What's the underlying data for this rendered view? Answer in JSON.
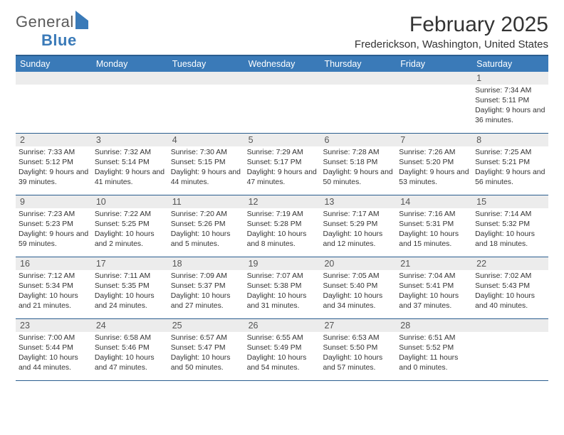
{
  "logo": {
    "word1": "General",
    "word2": "Blue"
  },
  "title": "February 2025",
  "location": "Frederickson, Washington, United States",
  "colors": {
    "header_bg": "#3a7ab8",
    "border": "#2a5d8f",
    "daynum_bg": "#ececec"
  },
  "daysOfWeek": [
    "Sunday",
    "Monday",
    "Tuesday",
    "Wednesday",
    "Thursday",
    "Friday",
    "Saturday"
  ],
  "weeks": [
    [
      null,
      null,
      null,
      null,
      null,
      null,
      {
        "n": "1",
        "sr": "Sunrise: 7:34 AM",
        "ss": "Sunset: 5:11 PM",
        "dl": "Daylight: 9 hours and 36 minutes."
      }
    ],
    [
      {
        "n": "2",
        "sr": "Sunrise: 7:33 AM",
        "ss": "Sunset: 5:12 PM",
        "dl": "Daylight: 9 hours and 39 minutes."
      },
      {
        "n": "3",
        "sr": "Sunrise: 7:32 AM",
        "ss": "Sunset: 5:14 PM",
        "dl": "Daylight: 9 hours and 41 minutes."
      },
      {
        "n": "4",
        "sr": "Sunrise: 7:30 AM",
        "ss": "Sunset: 5:15 PM",
        "dl": "Daylight: 9 hours and 44 minutes."
      },
      {
        "n": "5",
        "sr": "Sunrise: 7:29 AM",
        "ss": "Sunset: 5:17 PM",
        "dl": "Daylight: 9 hours and 47 minutes."
      },
      {
        "n": "6",
        "sr": "Sunrise: 7:28 AM",
        "ss": "Sunset: 5:18 PM",
        "dl": "Daylight: 9 hours and 50 minutes."
      },
      {
        "n": "7",
        "sr": "Sunrise: 7:26 AM",
        "ss": "Sunset: 5:20 PM",
        "dl": "Daylight: 9 hours and 53 minutes."
      },
      {
        "n": "8",
        "sr": "Sunrise: 7:25 AM",
        "ss": "Sunset: 5:21 PM",
        "dl": "Daylight: 9 hours and 56 minutes."
      }
    ],
    [
      {
        "n": "9",
        "sr": "Sunrise: 7:23 AM",
        "ss": "Sunset: 5:23 PM",
        "dl": "Daylight: 9 hours and 59 minutes."
      },
      {
        "n": "10",
        "sr": "Sunrise: 7:22 AM",
        "ss": "Sunset: 5:25 PM",
        "dl": "Daylight: 10 hours and 2 minutes."
      },
      {
        "n": "11",
        "sr": "Sunrise: 7:20 AM",
        "ss": "Sunset: 5:26 PM",
        "dl": "Daylight: 10 hours and 5 minutes."
      },
      {
        "n": "12",
        "sr": "Sunrise: 7:19 AM",
        "ss": "Sunset: 5:28 PM",
        "dl": "Daylight: 10 hours and 8 minutes."
      },
      {
        "n": "13",
        "sr": "Sunrise: 7:17 AM",
        "ss": "Sunset: 5:29 PM",
        "dl": "Daylight: 10 hours and 12 minutes."
      },
      {
        "n": "14",
        "sr": "Sunrise: 7:16 AM",
        "ss": "Sunset: 5:31 PM",
        "dl": "Daylight: 10 hours and 15 minutes."
      },
      {
        "n": "15",
        "sr": "Sunrise: 7:14 AM",
        "ss": "Sunset: 5:32 PM",
        "dl": "Daylight: 10 hours and 18 minutes."
      }
    ],
    [
      {
        "n": "16",
        "sr": "Sunrise: 7:12 AM",
        "ss": "Sunset: 5:34 PM",
        "dl": "Daylight: 10 hours and 21 minutes."
      },
      {
        "n": "17",
        "sr": "Sunrise: 7:11 AM",
        "ss": "Sunset: 5:35 PM",
        "dl": "Daylight: 10 hours and 24 minutes."
      },
      {
        "n": "18",
        "sr": "Sunrise: 7:09 AM",
        "ss": "Sunset: 5:37 PM",
        "dl": "Daylight: 10 hours and 27 minutes."
      },
      {
        "n": "19",
        "sr": "Sunrise: 7:07 AM",
        "ss": "Sunset: 5:38 PM",
        "dl": "Daylight: 10 hours and 31 minutes."
      },
      {
        "n": "20",
        "sr": "Sunrise: 7:05 AM",
        "ss": "Sunset: 5:40 PM",
        "dl": "Daylight: 10 hours and 34 minutes."
      },
      {
        "n": "21",
        "sr": "Sunrise: 7:04 AM",
        "ss": "Sunset: 5:41 PM",
        "dl": "Daylight: 10 hours and 37 minutes."
      },
      {
        "n": "22",
        "sr": "Sunrise: 7:02 AM",
        "ss": "Sunset: 5:43 PM",
        "dl": "Daylight: 10 hours and 40 minutes."
      }
    ],
    [
      {
        "n": "23",
        "sr": "Sunrise: 7:00 AM",
        "ss": "Sunset: 5:44 PM",
        "dl": "Daylight: 10 hours and 44 minutes."
      },
      {
        "n": "24",
        "sr": "Sunrise: 6:58 AM",
        "ss": "Sunset: 5:46 PM",
        "dl": "Daylight: 10 hours and 47 minutes."
      },
      {
        "n": "25",
        "sr": "Sunrise: 6:57 AM",
        "ss": "Sunset: 5:47 PM",
        "dl": "Daylight: 10 hours and 50 minutes."
      },
      {
        "n": "26",
        "sr": "Sunrise: 6:55 AM",
        "ss": "Sunset: 5:49 PM",
        "dl": "Daylight: 10 hours and 54 minutes."
      },
      {
        "n": "27",
        "sr": "Sunrise: 6:53 AM",
        "ss": "Sunset: 5:50 PM",
        "dl": "Daylight: 10 hours and 57 minutes."
      },
      {
        "n": "28",
        "sr": "Sunrise: 6:51 AM",
        "ss": "Sunset: 5:52 PM",
        "dl": "Daylight: 11 hours and 0 minutes."
      },
      null
    ]
  ]
}
